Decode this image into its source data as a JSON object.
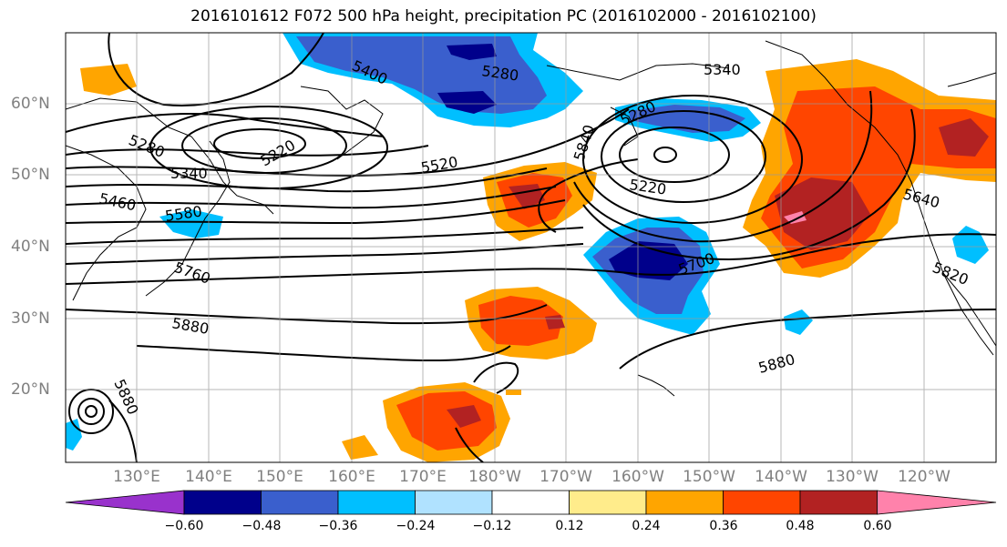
{
  "title": "2016101612 F072 500 hPa height, precipitation PC (2016102000 - 2016102100)",
  "lat_labels": [
    "60°N",
    "50°N",
    "40°N",
    "30°N",
    "20°N"
  ],
  "lon_labels": [
    "130°E",
    "140°E",
    "150°E",
    "160°E",
    "170°E",
    "180°W",
    "170°W",
    "160°W",
    "150°W",
    "140°W",
    "130°W",
    "120°W"
  ],
  "contour_labels": [
    "5400",
    "5280",
    "5340",
    "5280",
    "5220",
    "5340",
    "5460",
    "5580",
    "5760",
    "5880",
    "5520",
    "5840",
    "5280",
    "5220",
    "5700",
    "5880",
    "5640",
    "5820",
    "5880"
  ],
  "colorbar": {
    "colors": [
      "#9932cc",
      "#00008b",
      "#3a5fcd",
      "#00bfff",
      "#b0e2ff",
      "#ffffff",
      "#ffec8b",
      "#ffa500",
      "#ff4500",
      "#b22222",
      "#ff82ab"
    ],
    "tick_labels": [
      "−0.60",
      "−0.48",
      "−0.36",
      "−0.24",
      "−0.12",
      "0.12",
      "0.24",
      "0.36",
      "0.48",
      "0.60"
    ]
  }
}
